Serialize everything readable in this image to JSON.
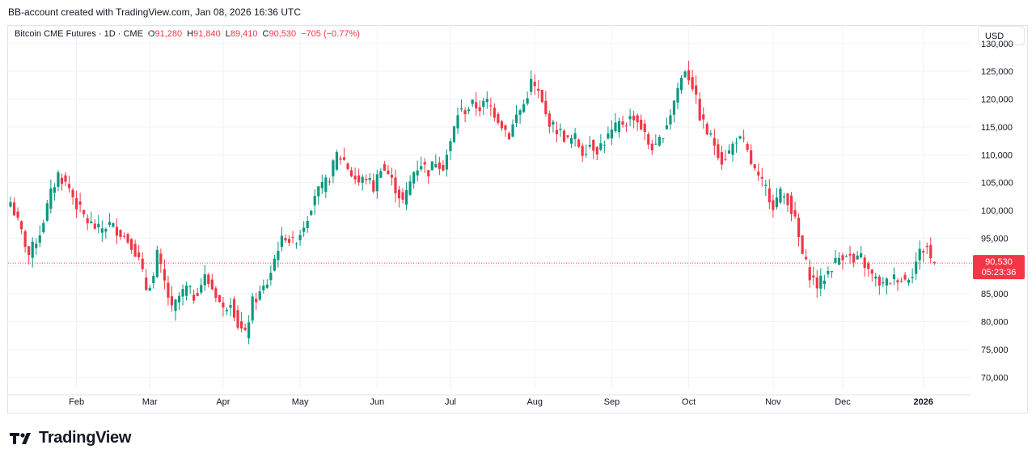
{
  "header": {
    "text": "BB-account created with TradingView.com, Jan 08, 2026 16:36 UTC"
  },
  "legend": {
    "symbol": "Bitcoin CME Futures · 1D · CME",
    "o_label": "O",
    "o": "91,280",
    "h_label": "H",
    "h": "91,840",
    "l_label": "L",
    "l": "89,410",
    "c_label": "C",
    "c": "90,530",
    "change": "−705 (−0.77%)"
  },
  "currency_button": "USD",
  "price_tag": {
    "price": "90,530",
    "countdown": "05:23:36",
    "color": "#f23645"
  },
  "brand": {
    "name": "TradingView"
  },
  "colors": {
    "up": "#089981",
    "down": "#f23645",
    "grid": "#f0f3fa",
    "text": "#131722"
  },
  "chart_data": {
    "type": "candlestick",
    "title": "Bitcoin CME Futures · 1D · CME",
    "y_axis": {
      "position": "right",
      "ylim": [
        68000,
        132000
      ],
      "ticks": [
        70000,
        75000,
        80000,
        85000,
        90000,
        95000,
        100000,
        105000,
        110000,
        115000,
        120000,
        125000,
        130000
      ],
      "tick_labels": [
        "70,000",
        "75,000",
        "80,000",
        "85,000",
        "90,000",
        "95,000",
        "100,000",
        "105,000",
        "110,000",
        "115,000",
        "120,000",
        "125,000",
        "130,000"
      ]
    },
    "x_axis": {
      "months": [
        {
          "label": "Feb",
          "day": 18
        },
        {
          "label": "Mar",
          "day": 38
        },
        {
          "label": "Apr",
          "day": 58
        },
        {
          "label": "May",
          "day": 79
        },
        {
          "label": "Jun",
          "day": 100
        },
        {
          "label": "Jul",
          "day": 120
        },
        {
          "label": "Aug",
          "day": 143
        },
        {
          "label": "Sep",
          "day": 164
        },
        {
          "label": "Oct",
          "day": 185
        },
        {
          "label": "Nov",
          "day": 208
        },
        {
          "label": "Dec",
          "day": 227
        },
        {
          "label": "2026",
          "day": 249
        }
      ],
      "x_range": [
        0,
        257
      ]
    },
    "grid": true,
    "last_close": 90530,
    "series_keypoints": [
      [
        0,
        101500
      ],
      [
        3,
        96000
      ],
      [
        5,
        92000
      ],
      [
        8,
        96000
      ],
      [
        11,
        103000
      ],
      [
        13,
        106500
      ],
      [
        16,
        104000
      ],
      [
        18,
        101000
      ],
      [
        21,
        98000
      ],
      [
        24,
        96500
      ],
      [
        27,
        97500
      ],
      [
        30,
        96000
      ],
      [
        33,
        94000
      ],
      [
        35,
        91000
      ],
      [
        37,
        86000
      ],
      [
        39,
        88000
      ],
      [
        40,
        92000
      ],
      [
        42,
        87000
      ],
      [
        44,
        82000
      ],
      [
        46,
        84500
      ],
      [
        48,
        86000
      ],
      [
        50,
        84500
      ],
      [
        53,
        88000
      ],
      [
        56,
        85000
      ],
      [
        58,
        82000
      ],
      [
        60,
        84000
      ],
      [
        62,
        79500
      ],
      [
        64,
        77500
      ],
      [
        66,
        83500
      ],
      [
        68,
        85000
      ],
      [
        70,
        87000
      ],
      [
        71,
        89000
      ],
      [
        73,
        93500
      ],
      [
        75,
        95500
      ],
      [
        77,
        94000
      ],
      [
        79,
        96000
      ],
      [
        81,
        99000
      ],
      [
        83,
        103000
      ],
      [
        85,
        104000
      ],
      [
        87,
        106000
      ],
      [
        89,
        110000
      ],
      [
        91,
        109000
      ],
      [
        93,
        106500
      ],
      [
        95,
        105000
      ],
      [
        97,
        106000
      ],
      [
        99,
        104000
      ],
      [
        101,
        108000
      ],
      [
        103,
        106500
      ],
      [
        105,
        104000
      ],
      [
        107,
        101500
      ],
      [
        108,
        103000
      ],
      [
        110,
        107000
      ],
      [
        112,
        108500
      ],
      [
        114,
        107000
      ],
      [
        116,
        109000
      ],
      [
        118,
        108000
      ],
      [
        120,
        112000
      ],
      [
        122,
        117500
      ],
      [
        124,
        118000
      ],
      [
        126,
        119000
      ],
      [
        128,
        118500
      ],
      [
        130,
        119500
      ],
      [
        132,
        117500
      ],
      [
        134,
        115500
      ],
      [
        136,
        113500
      ],
      [
        138,
        117000
      ],
      [
        140,
        119000
      ],
      [
        142,
        123000
      ],
      [
        144,
        121000
      ],
      [
        146,
        117000
      ],
      [
        148,
        115000
      ],
      [
        150,
        114000
      ],
      [
        152,
        112500
      ],
      [
        154,
        113000
      ],
      [
        156,
        110500
      ],
      [
        158,
        112000
      ],
      [
        160,
        111000
      ],
      [
        162,
        112500
      ],
      [
        164,
        114000
      ],
      [
        166,
        115500
      ],
      [
        168,
        116000
      ],
      [
        170,
        117000
      ],
      [
        172,
        115000
      ],
      [
        174,
        112000
      ],
      [
        176,
        111000
      ],
      [
        178,
        114000
      ],
      [
        180,
        117500
      ],
      [
        182,
        122000
      ],
      [
        184,
        125500
      ],
      [
        186,
        122500
      ],
      [
        188,
        117000
      ],
      [
        190,
        114000
      ],
      [
        192,
        112000
      ],
      [
        194,
        109000
      ],
      [
        196,
        110500
      ],
      [
        198,
        113000
      ],
      [
        200,
        112000
      ],
      [
        202,
        108500
      ],
      [
        204,
        105500
      ],
      [
        206,
        104000
      ],
      [
        208,
        101000
      ],
      [
        210,
        103000
      ],
      [
        212,
        102000
      ],
      [
        214,
        98000
      ],
      [
        216,
        92000
      ],
      [
        218,
        88500
      ],
      [
        220,
        86500
      ],
      [
        222,
        88000
      ],
      [
        224,
        90000
      ],
      [
        226,
        91500
      ],
      [
        228,
        92500
      ],
      [
        230,
        90500
      ],
      [
        232,
        91500
      ],
      [
        234,
        89000
      ],
      [
        236,
        87500
      ],
      [
        238,
        86500
      ],
      [
        240,
        87500
      ],
      [
        242,
        88000
      ],
      [
        244,
        87500
      ],
      [
        246,
        89000
      ],
      [
        248,
        92500
      ],
      [
        250,
        93500
      ],
      [
        251,
        91280
      ],
      [
        252,
        90530
      ]
    ]
  }
}
